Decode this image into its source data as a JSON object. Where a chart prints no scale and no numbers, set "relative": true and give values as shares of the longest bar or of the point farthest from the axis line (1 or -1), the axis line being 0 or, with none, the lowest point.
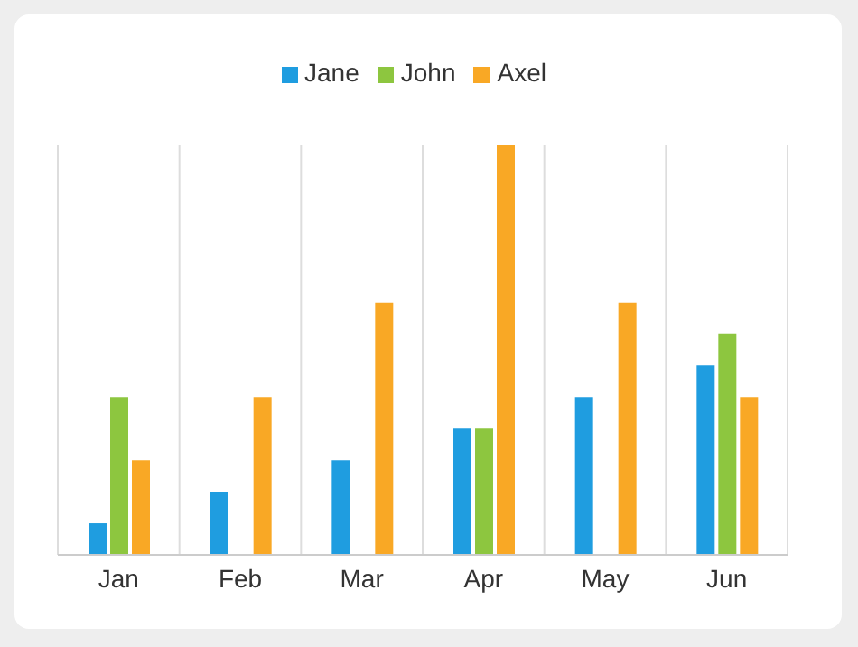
{
  "chart_data": {
    "type": "bar",
    "categories": [
      "Jan",
      "Feb",
      "Mar",
      "Apr",
      "May",
      "Jun"
    ],
    "relative": true,
    "series": [
      {
        "name": "Jane",
        "color": "#1f9de0",
        "values": [
          0.077,
          0.154,
          0.231,
          0.308,
          0.385,
          0.462
        ]
      },
      {
        "name": "John",
        "color": "#8dc63f",
        "values": [
          0.385,
          0,
          0,
          0.308,
          0,
          0.538
        ]
      },
      {
        "name": "Axel",
        "color": "#f9a825",
        "values": [
          0.231,
          0.385,
          0.615,
          1,
          0.615,
          0.385
        ]
      }
    ],
    "grid": "x",
    "legend": "top"
  }
}
